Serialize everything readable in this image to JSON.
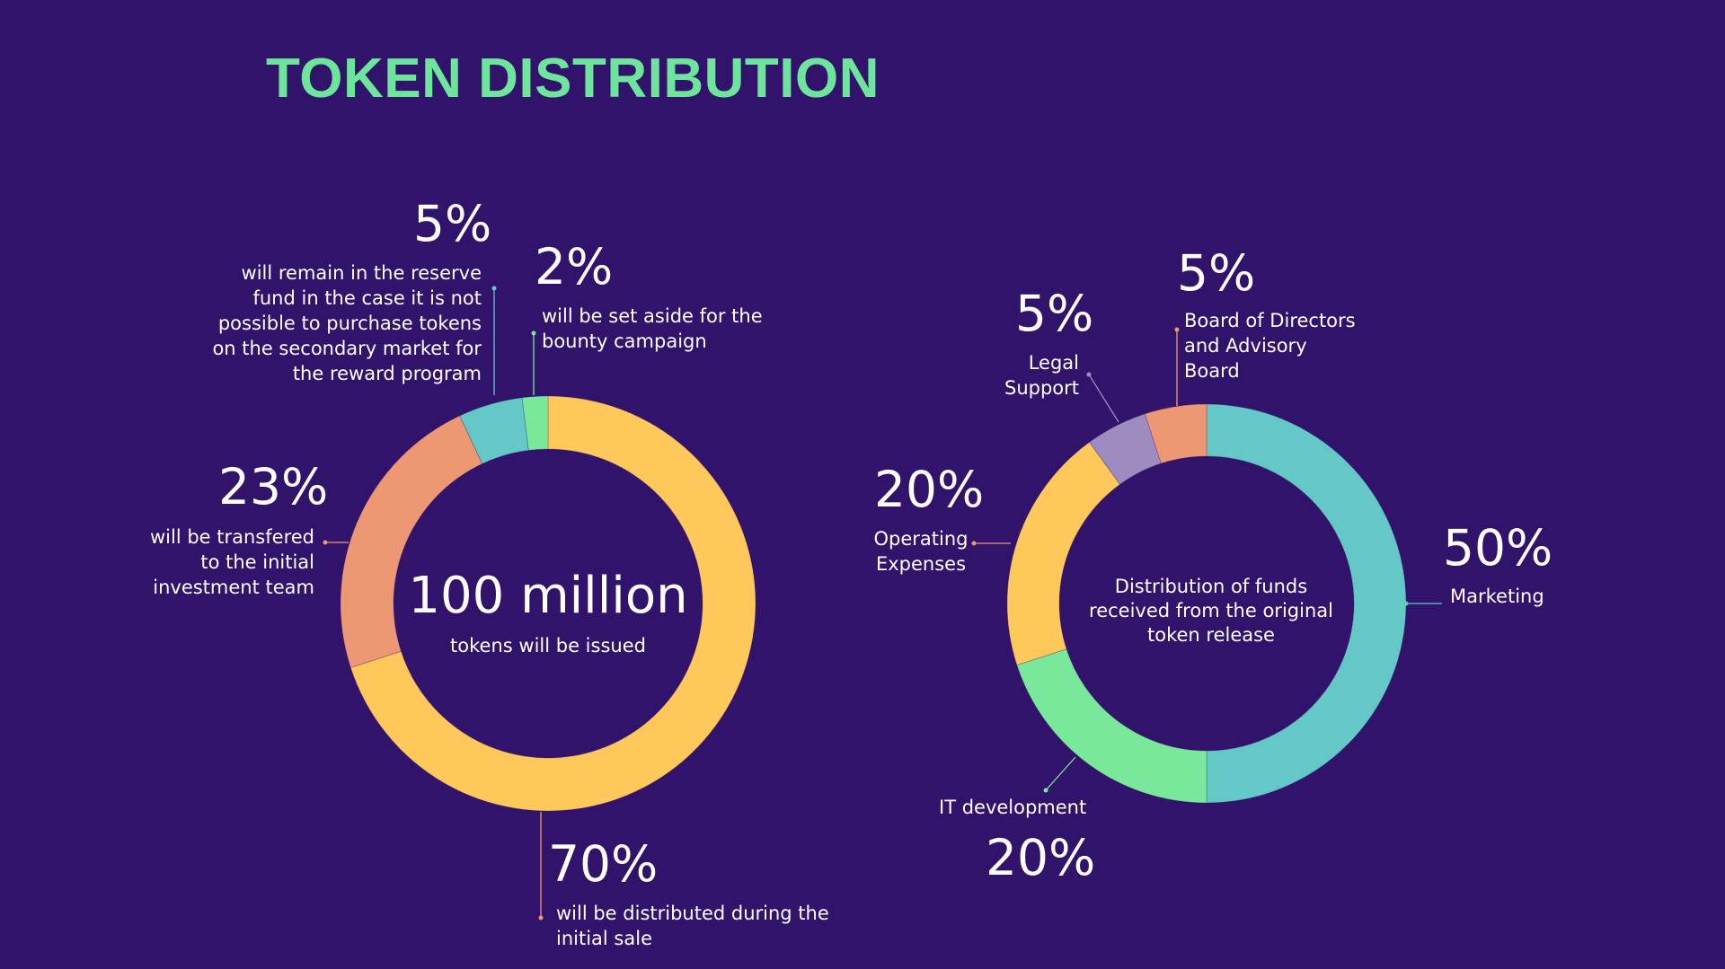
{
  "title": "TOKEN DISTRIBUTION",
  "colors": {
    "background": "#32136c",
    "title": "#6de59a",
    "yellow": "#fec85a",
    "orange": "#ee9873",
    "teal": "#64c8c6",
    "green": "#7ae89a",
    "purple": "#9e8bc0"
  },
  "chart_data": [
    {
      "type": "pie",
      "subtype": "donut",
      "center_value": "100 million",
      "center_label": "tokens will be issued",
      "slices": [
        {
          "pct": "70%",
          "value": 70,
          "color": "#fec85a",
          "label": "will be distributed during the initial sale"
        },
        {
          "pct": "23%",
          "value": 23,
          "color": "#ee9873",
          "label": "will be transfered to the initial investment team"
        },
        {
          "pct": "5%",
          "value": 5,
          "color": "#64c8c6",
          "label": "will remain in the reserve fund in the case it is not possible to purchase tokens on the secondary market for the reward program"
        },
        {
          "pct": "2%",
          "value": 2,
          "color": "#7ae89a",
          "label": "will be set aside for the bounty campaign"
        }
      ]
    },
    {
      "type": "pie",
      "subtype": "donut",
      "center_label": "Distribution of funds received from the original token release",
      "slices": [
        {
          "pct": "50%",
          "value": 50,
          "color": "#64c8c6",
          "label": "Marketing"
        },
        {
          "pct": "20%",
          "value": 20,
          "color": "#7ae89a",
          "label": "IT development"
        },
        {
          "pct": "20%",
          "value": 20,
          "color": "#fec85a",
          "label": "Operating Expenses"
        },
        {
          "pct": "5%",
          "value": 5,
          "color": "#9e8bc0",
          "label": "Legal Support"
        },
        {
          "pct": "5%",
          "value": 5,
          "color": "#ee9873",
          "label": "Board of Directors and Advisory Board"
        }
      ]
    }
  ]
}
